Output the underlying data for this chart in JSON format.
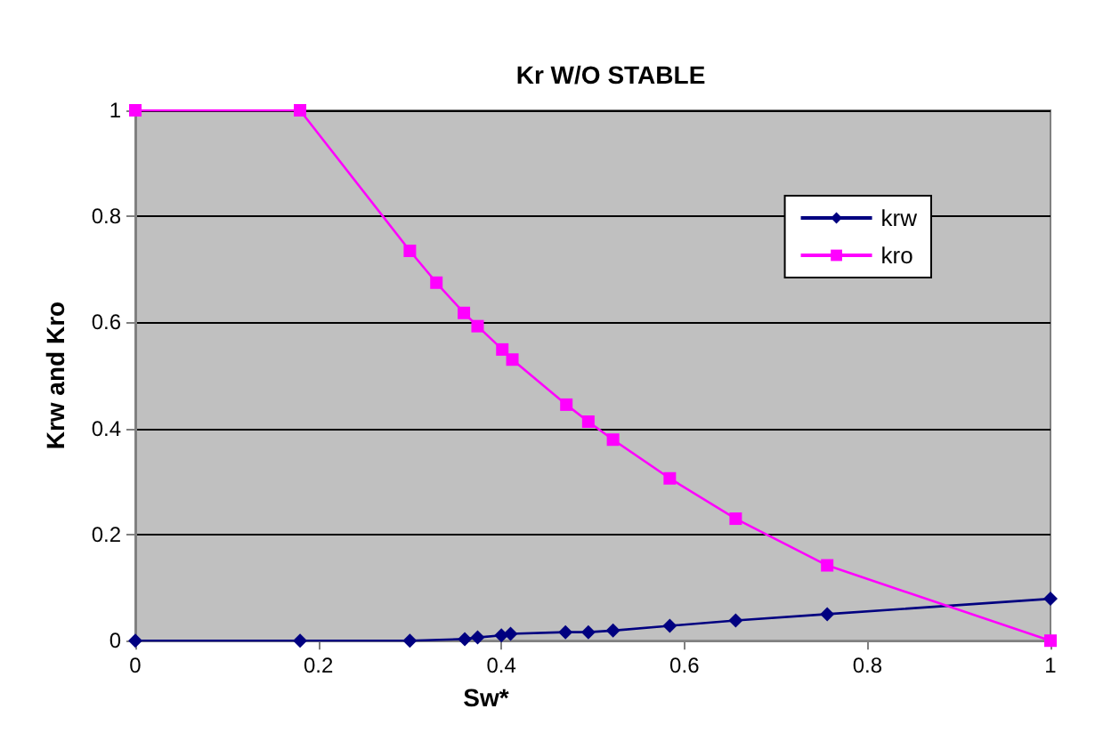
{
  "chart_data": {
    "type": "line",
    "title": "Kr W/O STABLE",
    "xlabel": "Sw*",
    "ylabel": "Krw and Kro",
    "xlim": [
      0,
      1
    ],
    "xticks": [
      0,
      0.2,
      0.4,
      0.6,
      0.8,
      1
    ],
    "ylim": [
      0,
      1
    ],
    "yticks": [
      0,
      0.2,
      0.4,
      0.6,
      0.8,
      1
    ],
    "grid": "y",
    "legend": "top right",
    "series": [
      {
        "name": "krw",
        "color": "#000080",
        "marker": "diamond",
        "x": [
          0,
          0.18,
          0.3,
          0.36,
          0.374,
          0.4,
          0.41,
          0.47,
          0.495,
          0.522,
          0.584,
          0.656,
          0.756,
          1
        ],
        "values": [
          0,
          0,
          0,
          0.003,
          0.006,
          0.01,
          0.013,
          0.016,
          0.016,
          0.019,
          0.028,
          0.038,
          0.05,
          0.079
        ]
      },
      {
        "name": "kro",
        "color": "#ff00ff",
        "marker": "square",
        "x": [
          0,
          0.18,
          0.3,
          0.329,
          0.359,
          0.374,
          0.401,
          0.412,
          0.471,
          0.495,
          0.522,
          0.584,
          0.656,
          0.756,
          1
        ],
        "values": [
          1,
          1,
          0.735,
          0.675,
          0.618,
          0.593,
          0.549,
          0.53,
          0.445,
          0.413,
          0.379,
          0.306,
          0.23,
          0.142,
          0
        ]
      }
    ]
  }
}
